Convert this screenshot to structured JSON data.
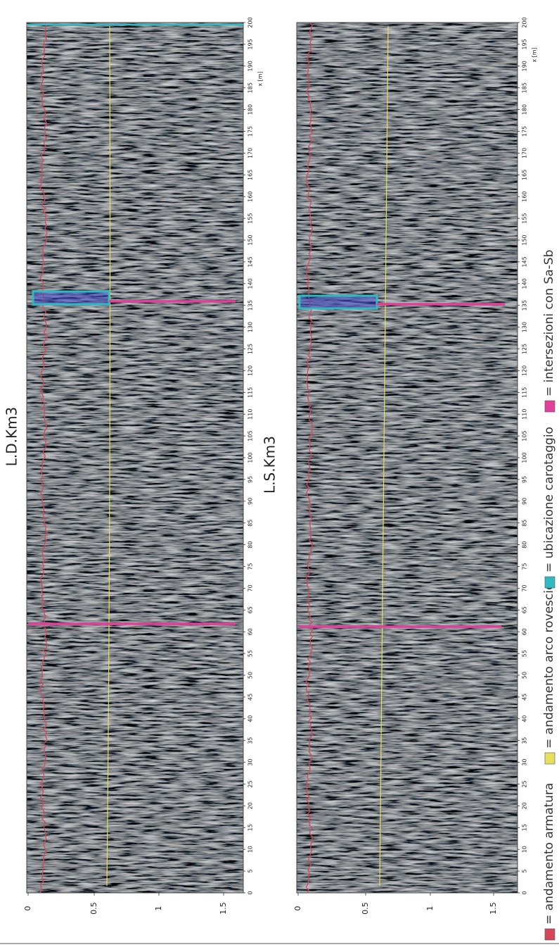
{
  "panels": [
    {
      "title": "L.D.Km3",
      "x_axis_label": "x [m]",
      "x_ticks": [
        "0",
        "5",
        "10",
        "15",
        "20",
        "25",
        "30",
        "35",
        "40",
        "45",
        "50",
        "55",
        "60",
        "65",
        "70",
        "75",
        "80",
        "85",
        "90",
        "95",
        "100",
        "105",
        "110",
        "115",
        "120",
        "125",
        "130",
        "135",
        "140",
        "145",
        "150",
        "155",
        "160",
        "165",
        "170",
        "175",
        "180",
        "185",
        "190",
        "195",
        "200"
      ],
      "depth_ticks": [
        "0",
        "0.5",
        "1",
        "1.5"
      ]
    },
    {
      "title": "L.S.Km3",
      "x_axis_label": "x [m]",
      "x_ticks": [
        "0",
        "5",
        "10",
        "15",
        "20",
        "25",
        "30",
        "35",
        "40",
        "45",
        "50",
        "55",
        "60",
        "65",
        "70",
        "75",
        "80",
        "85",
        "90",
        "95",
        "100",
        "105",
        "110",
        "115",
        "120",
        "125",
        "130",
        "135",
        "140",
        "145",
        "150",
        "155",
        "160",
        "165",
        "170",
        "175",
        "180",
        "185",
        "190",
        "195",
        "200"
      ],
      "depth_ticks": [
        "0",
        "0.5",
        "1",
        "1.5"
      ]
    }
  ],
  "legend": [
    {
      "label": "= andamento armatura",
      "color": "#d4475a"
    },
    {
      "label": "= andamento arco rovescio",
      "color": "#e6df5e"
    },
    {
      "label": "= ubicazione carotaggio",
      "color": "#2fb9c2"
    },
    {
      "label": "= intersezioni con Sa-Sb",
      "color": "#e0409a"
    }
  ]
}
